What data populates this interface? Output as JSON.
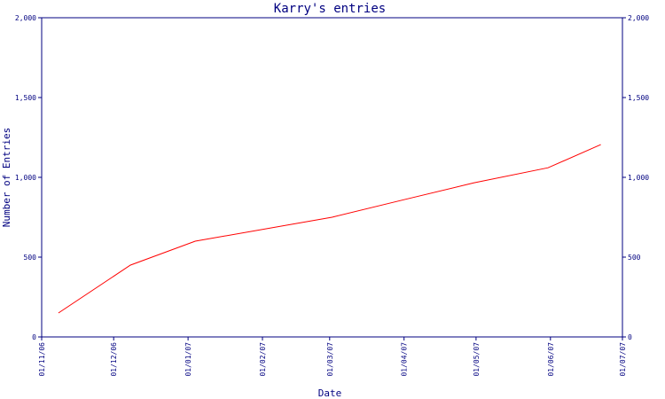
{
  "chart_data": {
    "type": "line",
    "title": "Karry's entries",
    "xlabel": "Date",
    "ylabel": "Number of Entries",
    "ylim": [
      0,
      2000
    ],
    "y_ticks": [
      {
        "value": 0,
        "label": "0"
      },
      {
        "value": 500,
        "label": "500"
      },
      {
        "value": 1000,
        "label": "1,000"
      },
      {
        "value": 1500,
        "label": "1,500"
      },
      {
        "value": 2000,
        "label": "2,000"
      }
    ],
    "x_ticks": [
      "01/11/06",
      "01/12/06",
      "01/01/07",
      "01/02/07",
      "01/03/07",
      "01/04/07",
      "01/05/07",
      "01/06/07",
      "01/07/07"
    ],
    "x_range": [
      "2006-11-01",
      "2007-07-01"
    ],
    "grid": false,
    "colors": {
      "axis": "#000080",
      "series": "#ff0000",
      "background": "#ffffff"
    },
    "series": [
      {
        "x": [
          "2006-11-08",
          "2006-12-08",
          "2007-01-04",
          "2007-03-02",
          "2007-04-01",
          "2007-04-30",
          "2007-05-31",
          "2007-06-22"
        ],
        "values": [
          150,
          450,
          600,
          750,
          860,
          965,
          1060,
          1205
        ]
      }
    ]
  }
}
